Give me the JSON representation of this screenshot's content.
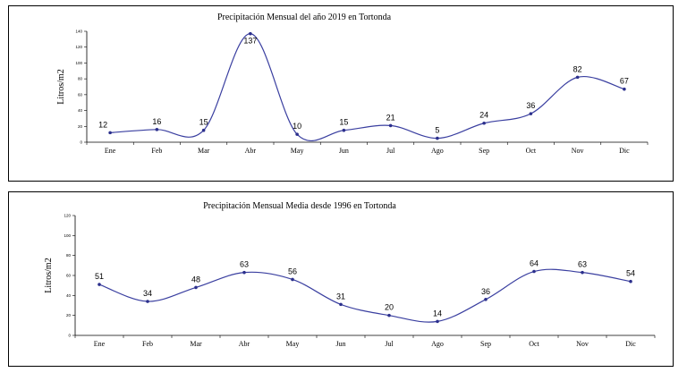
{
  "chart_data": [
    {
      "type": "line",
      "title": "Precipitación Mensual del año 2019 en Tortonda",
      "xlabel": "",
      "ylabel": "Litros/m2",
      "categories": [
        "Ene",
        "Feb",
        "Mar",
        "Abr",
        "May",
        "Jun",
        "Jul",
        "Ago",
        "Sep",
        "Oct",
        "Nov",
        "Dic"
      ],
      "ylim": [
        0,
        140
      ],
      "yticks": [
        0,
        20,
        40,
        60,
        80,
        100,
        120,
        140
      ],
      "series": [
        {
          "values": [
            12,
            16,
            15,
            137,
            10,
            15,
            21,
            5,
            24,
            36,
            82,
            67
          ]
        }
      ],
      "grid": false,
      "color": "#3a3fa0"
    },
    {
      "type": "line",
      "title": "Precipitación Mensual Media desde 1996 en Tortonda",
      "xlabel": "",
      "ylabel": "Litros/m2",
      "categories": [
        "Ene",
        "Feb",
        "Mar",
        "Abr",
        "May",
        "Jun",
        "Jul",
        "Ago",
        "Sep",
        "Oct",
        "Nov",
        "Dic"
      ],
      "ylim": [
        0,
        120
      ],
      "yticks": [
        0,
        20,
        40,
        60,
        80,
        100,
        120
      ],
      "series": [
        {
          "values": [
            51,
            34,
            48,
            63,
            56,
            31,
            20,
            14,
            36,
            64,
            63,
            54
          ]
        }
      ],
      "grid": false,
      "color": "#3a3fa0"
    }
  ]
}
